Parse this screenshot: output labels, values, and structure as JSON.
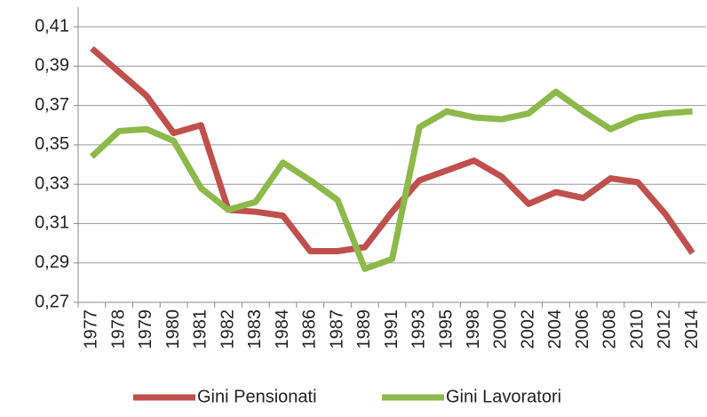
{
  "chart_data": {
    "type": "line",
    "categories": [
      "1977",
      "1978",
      "1979",
      "1980",
      "1981",
      "1982",
      "1983",
      "1984",
      "1986",
      "1987",
      "1989",
      "1991",
      "1993",
      "1995",
      "1998",
      "2000",
      "2002",
      "2004",
      "2006",
      "2008",
      "2010",
      "2012",
      "2014"
    ],
    "series": [
      {
        "name": "Gini Pensionati",
        "color": "#c0504d",
        "values": [
          0.399,
          0.387,
          0.375,
          0.356,
          0.36,
          0.317,
          0.316,
          0.314,
          0.296,
          0.296,
          0.298,
          0.316,
          0.332,
          0.337,
          0.342,
          0.334,
          0.32,
          0.326,
          0.323,
          0.333,
          0.331,
          0.315,
          0.295
        ]
      },
      {
        "name": "Gini Lavoratori",
        "color": "#8db94a",
        "values": [
          0.344,
          0.357,
          0.358,
          0.352,
          0.328,
          0.317,
          0.321,
          0.341,
          0.332,
          0.322,
          0.287,
          0.292,
          0.359,
          0.367,
          0.364,
          0.363,
          0.366,
          0.377,
          0.367,
          0.358,
          0.364,
          0.366,
          0.367
        ]
      }
    ],
    "ylim": [
      0.27,
      0.42
    ],
    "yticks": [
      {
        "value": 0.27,
        "label": "0,27"
      },
      {
        "value": 0.29,
        "label": "0,29"
      },
      {
        "value": 0.31,
        "label": "0,31"
      },
      {
        "value": 0.33,
        "label": "0,33"
      },
      {
        "value": 0.35,
        "label": "0,35"
      },
      {
        "value": 0.37,
        "label": "0,37"
      },
      {
        "value": 0.39,
        "label": "0,39"
      },
      {
        "value": 0.41,
        "label": "0,41"
      }
    ],
    "grid": true
  }
}
